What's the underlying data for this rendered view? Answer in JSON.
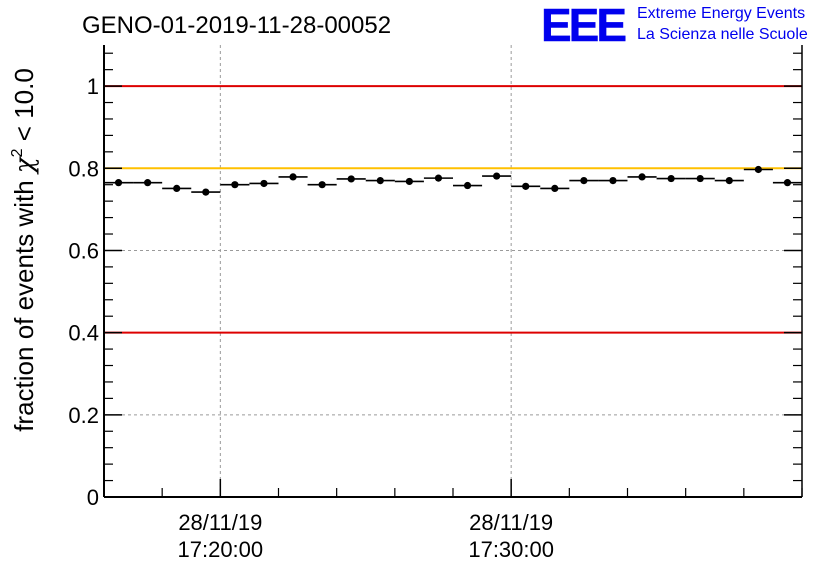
{
  "header": {
    "run_title": "GENO-01-2019-11-28-00052",
    "logo_text": "EEE",
    "logo_line1": "Extreme Energy Events",
    "logo_line2": "La Scienza nelle Scuole"
  },
  "colors": {
    "axis": "#000000",
    "grid": "#9a9a9a",
    "marker": "#000000",
    "limit_red": "#dd0000",
    "limit_yellow": "#ffc000",
    "logo_blue": "#0000ee"
  },
  "chart_data": {
    "type": "scatter",
    "title": "GENO-01-2019-11-28-00052",
    "ylabel_prefix": "fraction of events with ",
    "ylabel_symbol": "χ",
    "ylabel_sup": "2",
    "ylabel_suffix": " < 10.0",
    "xlabel": "",
    "ylim": [
      0,
      1.1
    ],
    "yticks": [
      0,
      0.2,
      0.4,
      0.6,
      0.8,
      1
    ],
    "ytick_labels": [
      "0",
      "0.2",
      "0.4",
      "0.6",
      "0.8",
      "1"
    ],
    "xlim_minutes": [
      0,
      24
    ],
    "x_major_ticks": [
      {
        "minute": 4,
        "date": "28/11/19",
        "time": "17:20:00"
      },
      {
        "minute": 14,
        "date": "28/11/19",
        "time": "17:30:00"
      }
    ],
    "x_minor_step_minutes": 2,
    "bin_width_minutes": 1,
    "reference_lines": [
      {
        "value": 1.0,
        "color": "red"
      },
      {
        "value": 0.8,
        "color": "yellow"
      },
      {
        "value": 0.4,
        "color": "red"
      }
    ],
    "series": [
      {
        "name": "fraction",
        "x": [
          0.5,
          1.5,
          2.5,
          3.5,
          4.5,
          5.5,
          6.5,
          7.5,
          8.5,
          9.5,
          10.5,
          11.5,
          12.5,
          13.5,
          14.5,
          15.5,
          16.5,
          17.5,
          18.5,
          19.5,
          20.5,
          21.5,
          22.5,
          23.5
        ],
        "y": [
          0.765,
          0.765,
          0.751,
          0.742,
          0.76,
          0.763,
          0.779,
          0.76,
          0.774,
          0.77,
          0.768,
          0.776,
          0.758,
          0.781,
          0.756,
          0.751,
          0.77,
          0.77,
          0.779,
          0.775,
          0.775,
          0.77,
          0.797,
          0.765
        ]
      }
    ]
  }
}
